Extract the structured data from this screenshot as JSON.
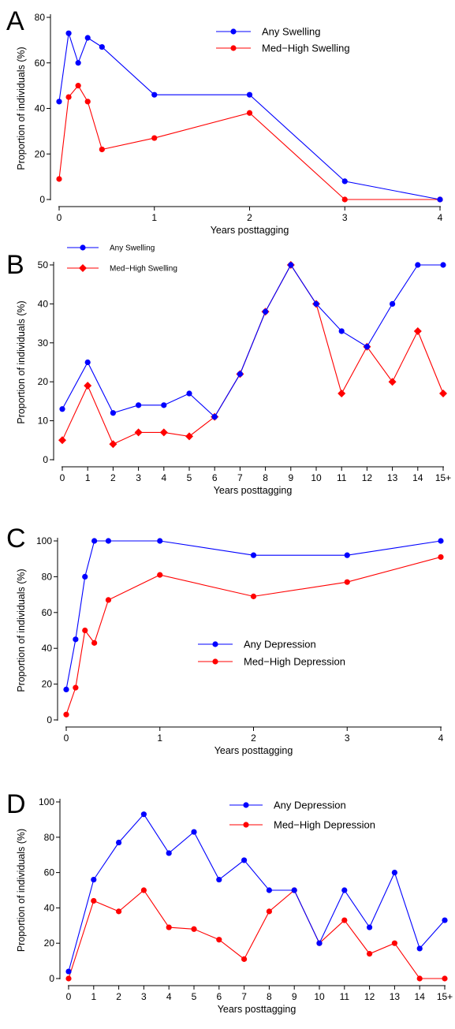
{
  "chart_data": [
    {
      "panel": "A",
      "type": "line",
      "title": "",
      "xlabel": "Years posttagging",
      "ylabel": "Proportion of individuals (%)",
      "xlim": [
        0,
        4
      ],
      "ylim": [
        0,
        80
      ],
      "x_ticks": [
        0,
        1,
        2,
        3,
        4
      ],
      "x_tick_labels": [
        "0",
        "1",
        "2",
        "3",
        "4"
      ],
      "y_ticks": [
        0,
        20,
        40,
        60,
        80
      ],
      "y_tick_labels": [
        "0",
        "20",
        "40",
        "60",
        "80"
      ],
      "legend_position": "top-right",
      "series": [
        {
          "name": "Any Swelling",
          "color": "#0000ff",
          "marker": "circle",
          "x": [
            0,
            0.1,
            0.2,
            0.3,
            0.45,
            1,
            2,
            3,
            4
          ],
          "values": [
            43,
            73,
            60,
            71,
            67,
            46,
            46,
            8,
            0
          ]
        },
        {
          "name": "Med−High Swelling",
          "color": "#ff0000",
          "marker": "circle",
          "x": [
            0,
            0.1,
            0.2,
            0.3,
            0.45,
            1,
            2,
            3,
            4
          ],
          "values": [
            9,
            45,
            50,
            43,
            22,
            27,
            38,
            0,
            0
          ]
        }
      ]
    },
    {
      "panel": "B",
      "type": "line",
      "title": "",
      "xlabel": "Years posttagging",
      "ylabel": "Proportion of individuals (%)",
      "xlim": [
        0,
        15
      ],
      "ylim": [
        0,
        50
      ],
      "x_ticks": [
        0,
        1,
        2,
        3,
        4,
        5,
        6,
        7,
        8,
        9,
        10,
        11,
        12,
        13,
        14,
        15
      ],
      "x_tick_labels": [
        "0",
        "1",
        "2",
        "3",
        "4",
        "5",
        "6",
        "7",
        "8",
        "9",
        "10",
        "11",
        "12",
        "13",
        "14",
        "15+"
      ],
      "y_ticks": [
        0,
        10,
        20,
        30,
        40,
        50
      ],
      "y_tick_labels": [
        "0",
        "10",
        "20",
        "30",
        "40",
        "50"
      ],
      "legend_position": "top-left",
      "series": [
        {
          "name": "Any Swelling",
          "color": "#0000ff",
          "marker": "circle",
          "x": [
            0,
            1,
            2,
            3,
            4,
            5,
            6,
            7,
            8,
            9,
            10,
            11,
            12,
            13,
            14,
            15
          ],
          "values": [
            13,
            25,
            12,
            14,
            14,
            17,
            11,
            22,
            38,
            50,
            40,
            33,
            29,
            40,
            50,
            50
          ]
        },
        {
          "name": "Med−High Swelling",
          "color": "#ff0000",
          "marker": "diamond",
          "x": [
            0,
            1,
            2,
            3,
            4,
            5,
            6,
            7,
            8,
            9,
            10,
            11,
            12,
            13,
            14,
            15
          ],
          "values": [
            5,
            19,
            4,
            7,
            7,
            6,
            11,
            22,
            38,
            50,
            40,
            17,
            29,
            20,
            33,
            17
          ]
        }
      ]
    },
    {
      "panel": "C",
      "type": "line",
      "title": "",
      "xlabel": "Years posttagging",
      "ylabel": "Proportion of individuals (%)",
      "xlim": [
        0,
        4
      ],
      "ylim": [
        0,
        100
      ],
      "x_ticks": [
        0,
        1,
        2,
        3,
        4
      ],
      "x_tick_labels": [
        "0",
        "1",
        "2",
        "3",
        "4"
      ],
      "y_ticks": [
        0,
        20,
        40,
        60,
        80,
        100
      ],
      "y_tick_labels": [
        "0",
        "20",
        "40",
        "60",
        "80",
        "100"
      ],
      "legend_position": "center-right",
      "series": [
        {
          "name": "Any Depression",
          "color": "#0000ff",
          "marker": "circle",
          "x": [
            0,
            0.1,
            0.2,
            0.3,
            0.45,
            1,
            2,
            3,
            4
          ],
          "values": [
            17,
            45,
            80,
            100,
            100,
            100,
            92,
            92,
            100
          ]
        },
        {
          "name": "Med−High Depression",
          "color": "#ff0000",
          "marker": "circle",
          "x": [
            0,
            0.1,
            0.2,
            0.3,
            0.45,
            1,
            2,
            3,
            4
          ],
          "values": [
            3,
            18,
            50,
            43,
            67,
            81,
            69,
            77,
            91
          ]
        }
      ]
    },
    {
      "panel": "D",
      "type": "line",
      "title": "",
      "xlabel": "Years posttagging",
      "ylabel": "Proportion of individuals (%)",
      "xlim": [
        0,
        15
      ],
      "ylim": [
        0,
        100
      ],
      "x_ticks": [
        0,
        1,
        2,
        3,
        4,
        5,
        6,
        7,
        8,
        9,
        10,
        11,
        12,
        13,
        14,
        15
      ],
      "x_tick_labels": [
        "0",
        "1",
        "2",
        "3",
        "4",
        "5",
        "6",
        "7",
        "8",
        "9",
        "10",
        "11",
        "12",
        "13",
        "14",
        "15+"
      ],
      "y_ticks": [
        0,
        20,
        40,
        60,
        80,
        100
      ],
      "y_tick_labels": [
        "0",
        "20",
        "40",
        "60",
        "80",
        "100"
      ],
      "legend_position": "top-right",
      "series": [
        {
          "name": "Any Depression",
          "color": "#0000ff",
          "marker": "circle",
          "x": [
            0,
            1,
            2,
            3,
            4,
            5,
            6,
            7,
            8,
            9,
            10,
            11,
            12,
            13,
            14,
            15
          ],
          "values": [
            4,
            56,
            77,
            93,
            71,
            83,
            56,
            67,
            50,
            50,
            20,
            50,
            29,
            60,
            17,
            33
          ]
        },
        {
          "name": "Med−High Depression",
          "color": "#ff0000",
          "marker": "circle",
          "x": [
            0,
            1,
            2,
            3,
            4,
            5,
            6,
            7,
            8,
            9,
            10,
            11,
            12,
            13,
            14,
            15
          ],
          "values": [
            0,
            44,
            38,
            50,
            29,
            28,
            22,
            11,
            38,
            50,
            20,
            33,
            14,
            20,
            0,
            0
          ]
        }
      ]
    }
  ]
}
